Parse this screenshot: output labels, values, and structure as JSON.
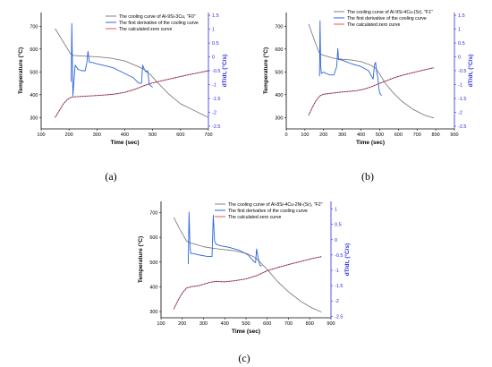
{
  "colors": {
    "cooling": "#808080",
    "derivative": "#2b63e0",
    "zero": "#e8544e",
    "zero_overlay": "#2a2a8a",
    "axis_right": "#2b2be0"
  },
  "chart_data": [
    {
      "type": "line",
      "panel_label": "(a)",
      "xlabel": "Time (sec)",
      "ylabel": "Temperature (°C)",
      "y2label": "dT/dt, (°C/s)",
      "xlim": [
        100,
        700
      ],
      "ylim": [
        250,
        760
      ],
      "y2lim": [
        -2.6,
        1.6
      ],
      "xticks": [
        100,
        200,
        300,
        400,
        500,
        600,
        700
      ],
      "yticks": [
        300,
        400,
        500,
        600,
        700
      ],
      "y2ticks": [
        1.5,
        1.0,
        0.5,
        0.0,
        -0.5,
        -1.0,
        -1.5,
        -2.0,
        -2.5
      ],
      "legend_position": "top-right",
      "series": [
        {
          "name": "The cooling curve of Al-9Si-3Cu, \"F0\"",
          "axis": "left",
          "color_key": "cooling",
          "x": [
            150,
            180,
            205,
            215,
            240,
            270,
            300,
            350,
            400,
            450,
            470,
            490,
            520,
            560,
            600,
            650,
            700
          ],
          "y": [
            690,
            630,
            580,
            572,
            570,
            568,
            566,
            560,
            548,
            522,
            510,
            490,
            450,
            400,
            360,
            330,
            300
          ]
        },
        {
          "name": "The first derivative of the cooling curve",
          "axis": "right",
          "color_key": "derivative",
          "x": [
            208,
            210,
            212,
            214,
            216,
            222,
            232,
            245,
            258,
            264,
            268,
            273,
            282,
            300,
            330,
            360,
            400,
            430,
            450,
            460,
            464,
            470,
            476,
            482,
            488,
            500
          ],
          "y": [
            -0.9,
            1.2,
            -0.2,
            -1.4,
            -1.1,
            -0.3,
            -0.45,
            -0.5,
            -0.5,
            -0.2,
            0.2,
            -0.2,
            -0.2,
            -0.25,
            -0.32,
            -0.4,
            -0.6,
            -0.75,
            -0.95,
            -0.95,
            -0.3,
            -0.45,
            -0.55,
            -0.5,
            -1.0,
            -1.1
          ]
        },
        {
          "name": "The calculated zero curve",
          "axis": "left",
          "color_key": "zero",
          "x": [
            150,
            165,
            180,
            195,
            210,
            240,
            280,
            320,
            360,
            400,
            440,
            470,
            500,
            540,
            580,
            620,
            660,
            700
          ],
          "y": [
            300,
            330,
            360,
            380,
            390,
            392,
            395,
            398,
            402,
            410,
            425,
            440,
            452,
            463,
            474,
            485,
            495,
            505
          ]
        }
      ]
    },
    {
      "type": "line",
      "panel_label": "(b)",
      "xlabel": "Time (sec)",
      "ylabel": "Temperature (°C)",
      "y2label": "dT/dt, (°C/s)",
      "xlim": [
        0,
        900
      ],
      "ylim": [
        250,
        760
      ],
      "y2lim": [
        -2.6,
        1.6
      ],
      "xticks": [
        0,
        100,
        200,
        300,
        400,
        500,
        600,
        700,
        800,
        900
      ],
      "yticks": [
        300,
        400,
        500,
        600,
        700
      ],
      "y2ticks": [
        1.5,
        1.0,
        0.5,
        0.0,
        -0.5,
        -1.0,
        -1.5,
        -2.0,
        -2.5
      ],
      "legend_position": "top-right",
      "series": [
        {
          "name": "The cooling curve of Al-9Si-4Cu-(Sr), \"F1\"",
          "axis": "left",
          "color_key": "cooling",
          "x": [
            120,
            150,
            175,
            185,
            210,
            250,
            300,
            350,
            400,
            450,
            480,
            500,
            530,
            570,
            620,
            680,
            740,
            790
          ],
          "y": [
            710,
            640,
            585,
            577,
            570,
            560,
            555,
            552,
            545,
            530,
            515,
            490,
            450,
            410,
            370,
            335,
            310,
            298
          ]
        },
        {
          "name": "The first derivative of the cooling curve",
          "axis": "right",
          "color_key": "derivative",
          "x": [
            178,
            181,
            184,
            188,
            200,
            215,
            230,
            255,
            270,
            276,
            280,
            290,
            310,
            350,
            400,
            440,
            465,
            472,
            478,
            484,
            490,
            495,
            500,
            510
          ],
          "y": [
            -0.7,
            1.3,
            -0.3,
            -0.6,
            -0.55,
            -0.6,
            -0.65,
            -0.65,
            -0.35,
            0.3,
            -0.1,
            -0.1,
            -0.15,
            -0.25,
            -0.35,
            -0.5,
            -0.8,
            -0.3,
            -0.2,
            -0.55,
            -0.75,
            -1.1,
            -1.3,
            -1.4
          ]
        },
        {
          "name": "The calculated zero curve",
          "axis": "left",
          "color_key": "zero",
          "x": [
            120,
            140,
            160,
            180,
            200,
            230,
            280,
            330,
            380,
            420,
            460,
            500,
            540,
            580,
            630,
            680,
            730,
            790
          ],
          "y": [
            310,
            345,
            375,
            395,
            402,
            405,
            410,
            414,
            418,
            425,
            436,
            450,
            462,
            475,
            487,
            497,
            507,
            518
          ]
        }
      ]
    },
    {
      "type": "line",
      "panel_label": "(c)",
      "xlabel": "Time (sec)",
      "ylabel": "Temperature (°C)",
      "y2label": "dT/dt, (°C/s)",
      "xlim": [
        100,
        900
      ],
      "ylim": [
        275,
        745
      ],
      "y2lim": [
        -2.55,
        1.25
      ],
      "xticks": [
        100,
        200,
        300,
        400,
        500,
        600,
        700,
        800,
        900
      ],
      "yticks": [
        300,
        400,
        500,
        600,
        700
      ],
      "y2ticks": [
        1.0,
        0.5,
        0.0,
        -0.5,
        -1.0,
        -1.5,
        -2.0,
        -2.5
      ],
      "legend_position": "top-right",
      "series": [
        {
          "name": "The cooling curve of Al-8Si-4Cu-2Ni-(Sr), \"F2\"",
          "axis": "left",
          "color_key": "cooling",
          "x": [
            160,
            190,
            220,
            235,
            260,
            300,
            350,
            400,
            450,
            500,
            540,
            560,
            600,
            650,
            700,
            760,
            810,
            855
          ],
          "y": [
            680,
            630,
            585,
            578,
            572,
            562,
            555,
            550,
            545,
            535,
            520,
            505,
            470,
            420,
            380,
            340,
            315,
            298
          ]
        },
        {
          "name": "The first derivative of the cooling curve",
          "axis": "right",
          "color_key": "derivative",
          "x": [
            228,
            232,
            236,
            240,
            250,
            280,
            320,
            340,
            346,
            352,
            360,
            380,
            420,
            470,
            510,
            535,
            545,
            550,
            556,
            566,
            575
          ],
          "y": [
            -0.8,
            0.9,
            -0.2,
            -0.45,
            -0.45,
            -0.5,
            -0.55,
            -0.55,
            0.8,
            -0.05,
            -0.15,
            -0.2,
            -0.25,
            -0.35,
            -0.5,
            -0.7,
            -0.75,
            -0.3,
            -0.55,
            -0.85,
            -0.85
          ]
        },
        {
          "name": "The calculated zero curve",
          "axis": "left",
          "color_key": "zero",
          "x": [
            160,
            180,
            200,
            220,
            240,
            280,
            330,
            360,
            400,
            450,
            500,
            550,
            600,
            650,
            700,
            760,
            810,
            855
          ],
          "y": [
            310,
            345,
            375,
            395,
            400,
            405,
            418,
            422,
            420,
            425,
            432,
            445,
            465,
            478,
            490,
            503,
            514,
            522
          ]
        }
      ]
    }
  ]
}
